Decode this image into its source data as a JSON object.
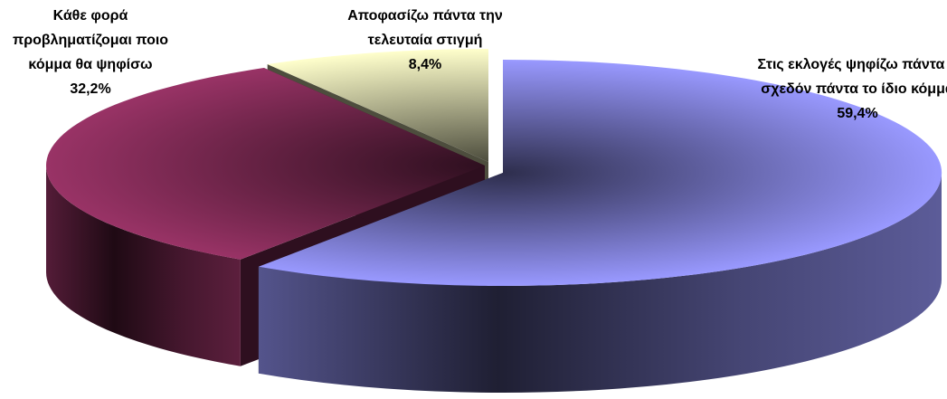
{
  "chart_data": {
    "type": "pie",
    "categories": [
      "Στις εκλογές ψηφίζω πάντα ή σχεδόν πάντα το ίδιο κόμμα",
      "Κάθε φορά προβληματίζομαι ποιο κόμμα θα ψηφίσω",
      "Αποφασίζω πάντα την τελευταία στιγμή"
    ],
    "values": [
      59.4,
      32.2,
      8.4
    ],
    "value_labels": [
      "59,4%",
      "32,2%",
      "8,4%"
    ],
    "colors": [
      "#9999ff",
      "#993366",
      "#ffffcc"
    ],
    "three_d": true
  }
}
